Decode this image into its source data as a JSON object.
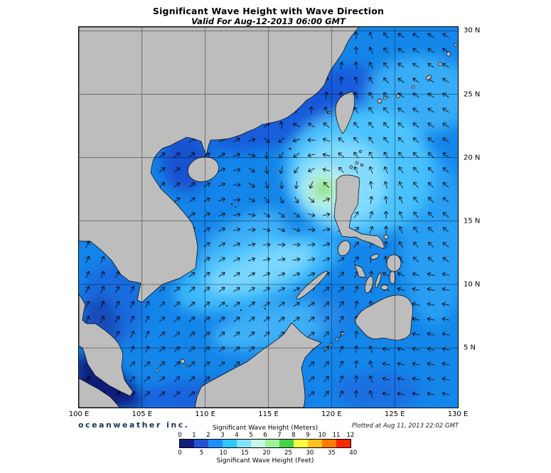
{
  "header": {
    "title": "Significant Wave Height with Wave Direction",
    "subtitle": "Valid For Aug-12-2013 06:00 GMT"
  },
  "map": {
    "lon_labels": [
      "100 E",
      "105 E",
      "110 E",
      "115 E",
      "120 E",
      "125 E",
      "130 E"
    ],
    "lat_labels": [
      "30 N",
      "25 N",
      "20 N",
      "15 N",
      "10 N",
      "5 N"
    ]
  },
  "footer": {
    "brand": "oceanweather inc.",
    "plotted": "Plotted at Aug 11, 2013 22:02 GMT"
  },
  "legend": {
    "meters_title": "Significant Wave Height (Meters)",
    "feet_title": "Significant Wave Height (Feet)",
    "meters_ticks": [
      "0",
      "1",
      "2",
      "3",
      "4",
      "5",
      "6",
      "7",
      "8",
      "9",
      "10",
      "11",
      "12"
    ],
    "feet_ticks": [
      "0",
      "5",
      "10",
      "15",
      "20",
      "25",
      "30",
      "35",
      "40"
    ],
    "colors": [
      "#141c7e",
      "#2353d4",
      "#1f8fff",
      "#2fc7ff",
      "#83e3ff",
      "#c6f7e8",
      "#9cf39c",
      "#46d246",
      "#ffff42",
      "#ffc01e",
      "#ff7a00",
      "#ff2400"
    ]
  }
}
